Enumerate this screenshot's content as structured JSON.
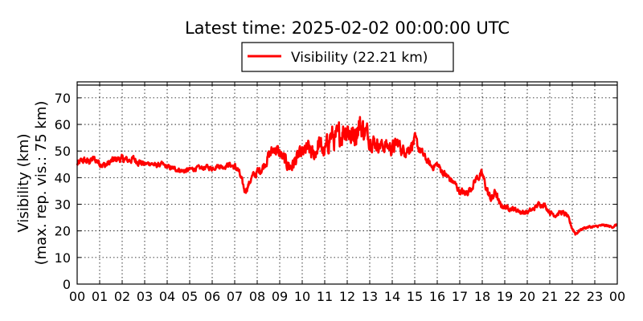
{
  "chart_data": {
    "type": "line",
    "title": "Latest time: 2025-02-02 00:00:00 UTC",
    "ylabel_line1": "Visibility (km)",
    "ylabel_line2": "(max. rep. vis.: 75 km)",
    "xlabel": "",
    "x_unit": "hour of day (UTC)",
    "xlim": [
      0,
      24
    ],
    "ylim": [
      0,
      76
    ],
    "x_ticks": [
      0,
      1,
      2,
      3,
      4,
      5,
      6,
      7,
      8,
      9,
      10,
      11,
      12,
      13,
      14,
      15,
      16,
      17,
      18,
      19,
      20,
      21,
      22,
      23,
      24
    ],
    "x_tick_labels": [
      "00",
      "01",
      "02",
      "03",
      "04",
      "05",
      "06",
      "07",
      "08",
      "09",
      "10",
      "11",
      "12",
      "13",
      "14",
      "15",
      "16",
      "17",
      "18",
      "19",
      "20",
      "21",
      "22",
      "23",
      "00"
    ],
    "y_ticks": [
      0,
      10,
      20,
      30,
      40,
      50,
      60,
      70
    ],
    "y_tick_labels": [
      "0",
      "10",
      "20",
      "30",
      "40",
      "50",
      "60",
      "70"
    ],
    "grid": true,
    "legend_position": "top-center",
    "series": [
      {
        "name": "Visibility (22.21 km)",
        "color": "#ff0000",
        "x": [
          0.0,
          0.25,
          0.5,
          0.75,
          1.0,
          1.25,
          1.5,
          1.75,
          2.0,
          2.25,
          2.5,
          2.75,
          3.0,
          3.25,
          3.5,
          3.75,
          4.0,
          4.25,
          4.5,
          4.75,
          5.0,
          5.25,
          5.5,
          5.75,
          6.0,
          6.25,
          6.5,
          6.75,
          7.0,
          7.15,
          7.3,
          7.45,
          7.6,
          7.75,
          8.0,
          8.25,
          8.5,
          8.75,
          9.0,
          9.25,
          9.5,
          9.75,
          10.0,
          10.25,
          10.5,
          10.75,
          11.0,
          11.25,
          11.5,
          11.75,
          12.0,
          12.25,
          12.5,
          12.75,
          13.0,
          13.25,
          13.5,
          13.75,
          14.0,
          14.25,
          14.5,
          14.75,
          15.0,
          15.25,
          15.5,
          15.75,
          16.0,
          16.25,
          16.5,
          16.75,
          17.0,
          17.25,
          17.5,
          17.75,
          18.0,
          18.15,
          18.3,
          18.45,
          18.6,
          18.75,
          19.0,
          19.25,
          19.5,
          19.75,
          20.0,
          20.25,
          20.5,
          20.75,
          21.0,
          21.25,
          21.5,
          21.75,
          21.9,
          22.0,
          22.15,
          22.3,
          22.5,
          22.75,
          23.0,
          23.25,
          23.5,
          23.75,
          24.0
        ],
        "values": [
          45,
          46.5,
          46,
          47,
          45.5,
          44.5,
          46,
          47,
          47,
          46.5,
          47,
          46,
          45,
          45.5,
          44.5,
          45,
          44,
          43.5,
          43,
          42.5,
          43,
          43.5,
          43.5,
          44,
          43.5,
          44.5,
          44,
          45,
          44,
          43,
          39,
          35,
          37,
          40,
          42,
          44,
          48,
          51,
          49,
          46,
          44,
          47,
          49,
          51,
          48,
          53,
          49,
          56,
          54,
          57,
          59,
          55,
          60,
          58,
          55,
          53,
          52,
          52,
          51,
          53,
          50,
          51,
          54,
          50,
          47,
          44,
          45,
          42,
          40,
          38,
          35,
          34,
          36,
          40,
          41,
          37,
          33,
          32,
          35,
          30,
          29,
          28.5,
          28,
          27,
          27,
          28,
          30,
          30,
          27,
          26,
          27,
          26,
          23,
          21,
          19,
          20,
          21,
          21.5,
          21.5,
          22,
          22,
          21.5,
          22.2
        ],
        "amplitude": [
          1.5,
          1.5,
          1.5,
          1.5,
          1.5,
          1.5,
          1.5,
          1.5,
          1.5,
          1.5,
          1.5,
          1.5,
          1.0,
          1.0,
          1.0,
          1.0,
          1.0,
          1.0,
          1.0,
          1.0,
          1.0,
          1.0,
          1.0,
          1.0,
          1.0,
          1.0,
          1.0,
          1.0,
          1.5,
          1.5,
          1.5,
          1.5,
          1.5,
          1.5,
          2.0,
          2.0,
          2.5,
          2.5,
          3.0,
          3.0,
          3.0,
          3.0,
          3.0,
          3.5,
          3.5,
          4.0,
          4.0,
          5.0,
          5.0,
          5.5,
          6.0,
          6.0,
          5.5,
          5.0,
          4.0,
          3.0,
          3.0,
          3.0,
          3.0,
          3.0,
          2.5,
          2.5,
          2.5,
          2.0,
          1.5,
          1.5,
          1.5,
          1.5,
          1.5,
          1.5,
          1.5,
          1.5,
          1.5,
          1.5,
          2.0,
          2.0,
          2.0,
          2.0,
          2.0,
          1.5,
          1.0,
          1.0,
          1.0,
          1.0,
          1.0,
          1.0,
          1.0,
          1.0,
          1.0,
          1.0,
          1.0,
          1.0,
          1.0,
          1.0,
          1.0,
          0.5,
          0.5,
          0.5,
          0.5,
          0.5,
          0.5,
          0.5,
          0.5
        ]
      }
    ]
  }
}
